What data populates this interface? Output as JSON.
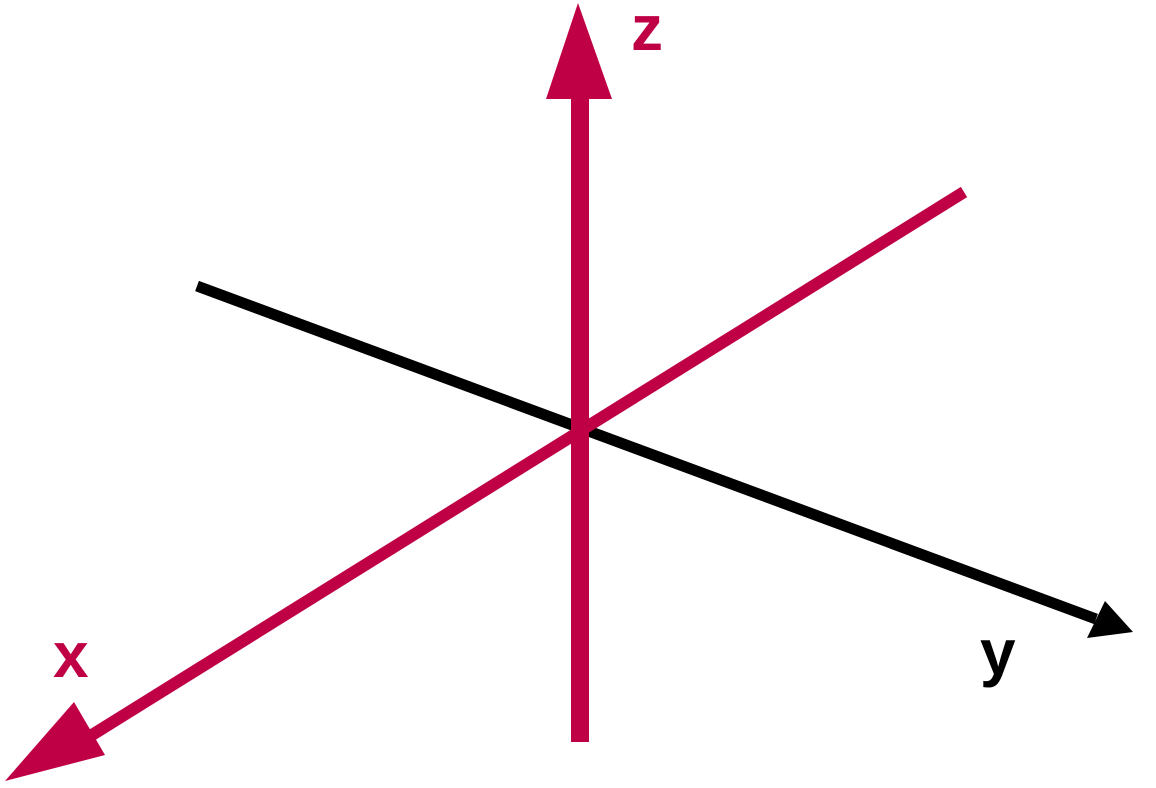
{
  "axes": {
    "x": {
      "label": "x",
      "color": "#bf0045"
    },
    "y": {
      "label": "y",
      "color": "#000000"
    },
    "z": {
      "label": "z",
      "color": "#bf0045"
    }
  }
}
